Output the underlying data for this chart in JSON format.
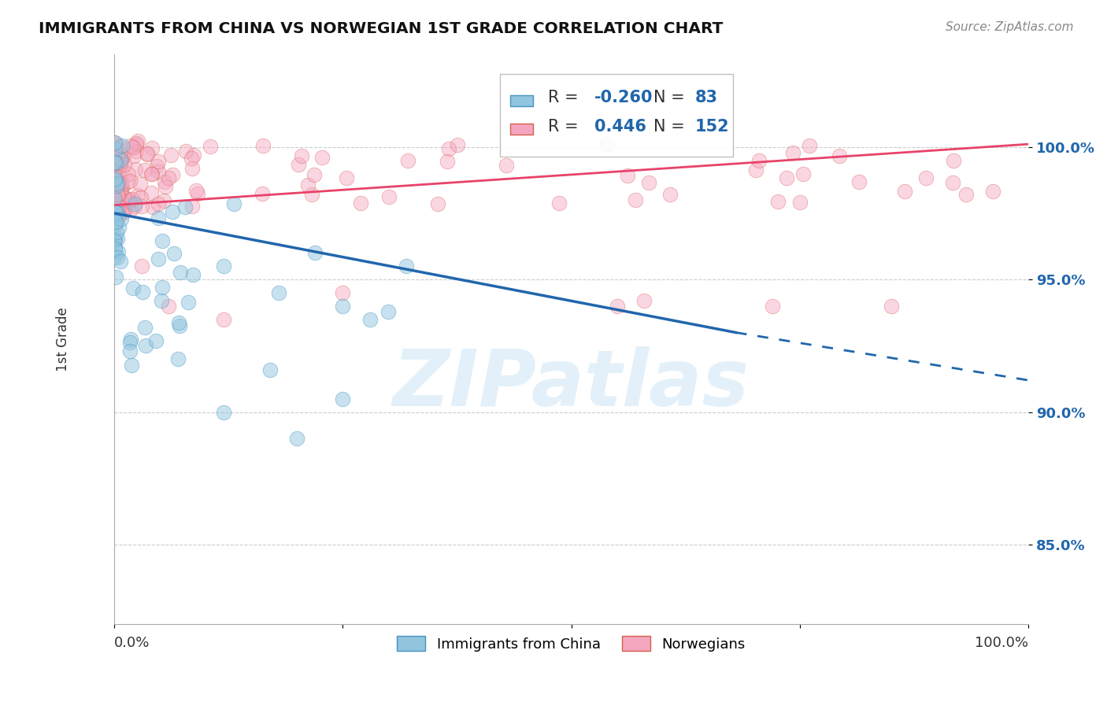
{
  "title": "IMMIGRANTS FROM CHINA VS NORWEGIAN 1ST GRADE CORRELATION CHART",
  "source": "Source: ZipAtlas.com",
  "ylabel": "1st Grade",
  "legend_label1": "Immigrants from China",
  "legend_label2": "Norwegians",
  "R_china": -0.26,
  "N_china": 83,
  "R_norwegian": 0.446,
  "N_norwegian": 152,
  "color_china": "#92c5de",
  "color_norwegian": "#f4a6bf",
  "color_china_line": "#2166ac",
  "color_norwegian_line": "#d6604d",
  "watermark": "ZIPatlas",
  "yticks": [
    0.85,
    0.9,
    0.95,
    1.0
  ],
  "ytick_labels": [
    "85.0%",
    "90.0%",
    "95.0%",
    "100.0%"
  ],
  "xlim": [
    0.0,
    1.0
  ],
  "ylim": [
    0.82,
    1.035
  ]
}
